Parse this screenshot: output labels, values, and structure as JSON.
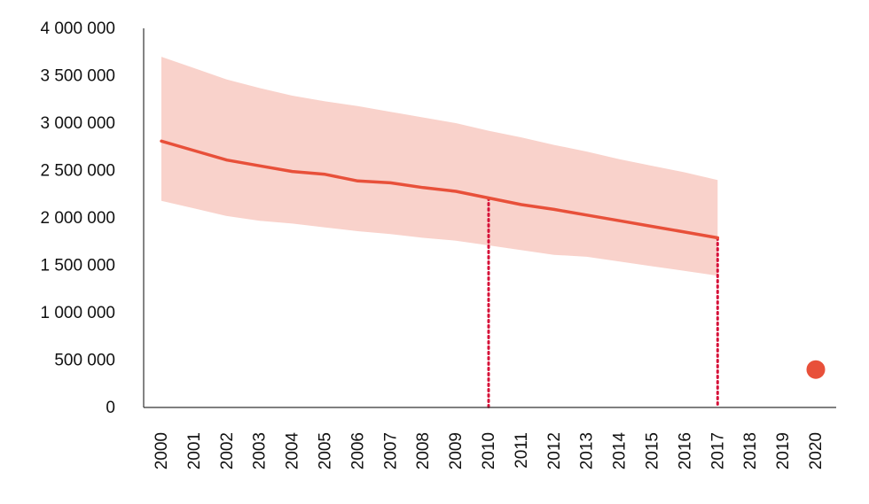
{
  "chart_data": {
    "type": "line",
    "title": "",
    "xlabel": "",
    "ylabel": "",
    "x": [
      "2000",
      "2001",
      "2002",
      "2003",
      "2004",
      "2005",
      "2006",
      "2007",
      "2008",
      "2009",
      "2010",
      "2011",
      "2012",
      "2013",
      "2014",
      "2015",
      "2016",
      "2017",
      "2018",
      "2019",
      "2020"
    ],
    "ylim": [
      0,
      4000000
    ],
    "yticks": [
      0,
      500000,
      1000000,
      1500000,
      2000000,
      2500000,
      3000000,
      3500000,
      4000000
    ],
    "ytick_labels": [
      "0",
      "500 000",
      "1 000 000",
      "1 500 000",
      "2 000 000",
      "2 500 000",
      "3 000 000",
      "3 500 000",
      "4 000 000"
    ],
    "grid": false,
    "series": [
      {
        "type": "line",
        "values": [
          2810000,
          2710000,
          2610000,
          2550000,
          2490000,
          2460000,
          2390000,
          2370000,
          2320000,
          2280000,
          2210000,
          2140000,
          2090000,
          2030000,
          1970000,
          1910000,
          1850000,
          1790000,
          null,
          null,
          null
        ]
      },
      {
        "type": "band",
        "upper": [
          3700000,
          3580000,
          3460000,
          3370000,
          3290000,
          3230000,
          3180000,
          3120000,
          3060000,
          3000000,
          2920000,
          2850000,
          2770000,
          2700000,
          2620000,
          2550000,
          2480000,
          2400000,
          null,
          null,
          null
        ],
        "lower": [
          2180000,
          2100000,
          2020000,
          1970000,
          1940000,
          1900000,
          1860000,
          1830000,
          1790000,
          1760000,
          1710000,
          1660000,
          1610000,
          1590000,
          1540000,
          1490000,
          1440000,
          1390000,
          null,
          null,
          null
        ]
      },
      {
        "type": "point",
        "x": "2020",
        "value": 400000
      }
    ],
    "reference_lines": [
      {
        "x": "2010",
        "style": "dotted"
      },
      {
        "x": "2017",
        "style": "dotted"
      }
    ],
    "colors": {
      "line": "#e8503a",
      "band": "#f9d2cb",
      "point": "#e8503a",
      "reference": "#d6133a",
      "axis": "#333333",
      "text": "#111111"
    }
  }
}
